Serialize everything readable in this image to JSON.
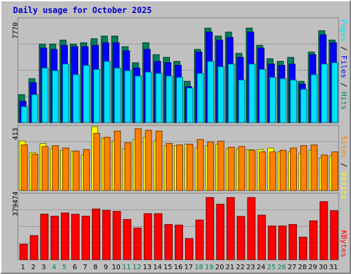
{
  "title": "Daily usage for October 2025",
  "hits_files_pages_panel": {
    "y_max_label": "7770",
    "legend": {
      "pages": "Pages",
      "files": "Files",
      "hits": "Hits",
      "sep": " / "
    }
  },
  "visits_sites_panel": {
    "y_max_label": "413",
    "legend": {
      "sites": "Sites",
      "visits": "Visits",
      "sep": " / "
    }
  },
  "kbytes_panel": {
    "y_max_label": "379474",
    "legend": {
      "kbytes": "KBytes"
    }
  },
  "colors": {
    "hits": "#00805c",
    "files": "#0000ff",
    "pages": "#00e0ff",
    "visits": "#ffff00",
    "sites": "#ff8000",
    "kbytes": "#ff0000",
    "weekend_day_label": "#00805c",
    "weekday_day_label": "#000000",
    "title": "#0000cc",
    "background": "#c0c0c0",
    "plot_background": "#c0c0c0"
  },
  "chart_data": [
    {
      "type": "bar",
      "categories": [
        "1",
        "2",
        "3",
        "4",
        "5",
        "6",
        "7",
        "8",
        "9",
        "10",
        "11",
        "12",
        "13",
        "14",
        "15",
        "16",
        "17",
        "18",
        "19",
        "20",
        "21",
        "22",
        "23",
        "24",
        "25",
        "26",
        "27",
        "28",
        "29",
        "30",
        "31"
      ],
      "weekend_days": [
        "4",
        "5",
        "11",
        "12",
        "18",
        "19",
        "25",
        "26"
      ],
      "ylim": [
        0,
        7770
      ],
      "series": [
        {
          "name": "Hits",
          "values": [
            2100,
            3300,
            5900,
            5900,
            6200,
            5900,
            6000,
            6300,
            6500,
            6500,
            5700,
            4500,
            6000,
            5100,
            4900,
            4600,
            3100,
            5500,
            7100,
            6500,
            6800,
            5200,
            7100,
            5800,
            4800,
            4600,
            4900,
            3100,
            5300,
            6900,
            6200
          ]
        },
        {
          "name": "Files",
          "values": [
            1600,
            3000,
            5600,
            5500,
            5800,
            5700,
            5700,
            5800,
            6000,
            6000,
            5400,
            4100,
            5500,
            4600,
            4500,
            4300,
            2700,
            5300,
            6800,
            6200,
            6400,
            4900,
            6800,
            5600,
            4400,
            4300,
            4400,
            2900,
            5100,
            6600,
            6000
          ]
        },
        {
          "name": "Pages",
          "values": [
            1200,
            2100,
            4100,
            3900,
            4400,
            3600,
            4300,
            4000,
            4600,
            4100,
            3900,
            3500,
            3800,
            3700,
            3500,
            3400,
            2600,
            3700,
            4600,
            4200,
            4400,
            3200,
            4400,
            4000,
            3400,
            3300,
            3200,
            2500,
            3600,
            4400,
            4500
          ]
        }
      ]
    },
    {
      "type": "bar",
      "categories": [
        "1",
        "2",
        "3",
        "4",
        "5",
        "6",
        "7",
        "8",
        "9",
        "10",
        "11",
        "12",
        "13",
        "14",
        "15",
        "16",
        "17",
        "18",
        "19",
        "20",
        "21",
        "22",
        "23",
        "24",
        "25",
        "26",
        "27",
        "28",
        "29",
        "30",
        "31"
      ],
      "ylim": [
        0,
        413
      ],
      "series": [
        {
          "name": "Visits",
          "values": [
            320,
            245,
            304,
            270,
            260,
            255,
            230,
            413,
            340,
            320,
            270,
            330,
            345,
            320,
            290,
            290,
            300,
            275,
            290,
            300,
            270,
            270,
            265,
            265,
            275,
            250,
            250,
            240,
            260,
            210,
            225
          ]
        },
        {
          "name": "Sites",
          "values": [
            295,
            235,
            285,
            290,
            275,
            255,
            265,
            370,
            345,
            385,
            310,
            400,
            390,
            385,
            305,
            295,
            300,
            330,
            315,
            320,
            280,
            285,
            260,
            250,
            250,
            260,
            275,
            290,
            295,
            230,
            250
          ]
        }
      ]
    },
    {
      "type": "bar",
      "categories": [
        "1",
        "2",
        "3",
        "4",
        "5",
        "6",
        "7",
        "8",
        "9",
        "10",
        "11",
        "12",
        "13",
        "14",
        "15",
        "16",
        "17",
        "18",
        "19",
        "20",
        "21",
        "22",
        "23",
        "24",
        "25",
        "26",
        "27",
        "28",
        "29",
        "30",
        "31"
      ],
      "ylim": [
        0,
        379474
      ],
      "series": [
        {
          "name": "KBytes",
          "values": [
            90000,
            140000,
            265000,
            253000,
            272000,
            264000,
            253000,
            295000,
            287000,
            281000,
            234000,
            184000,
            268000,
            268000,
            205000,
            201000,
            123000,
            231000,
            362000,
            323000,
            362000,
            252000,
            362000,
            259000,
            196000,
            196000,
            205000,
            131000,
            226000,
            338000,
            285000
          ]
        }
      ]
    }
  ]
}
